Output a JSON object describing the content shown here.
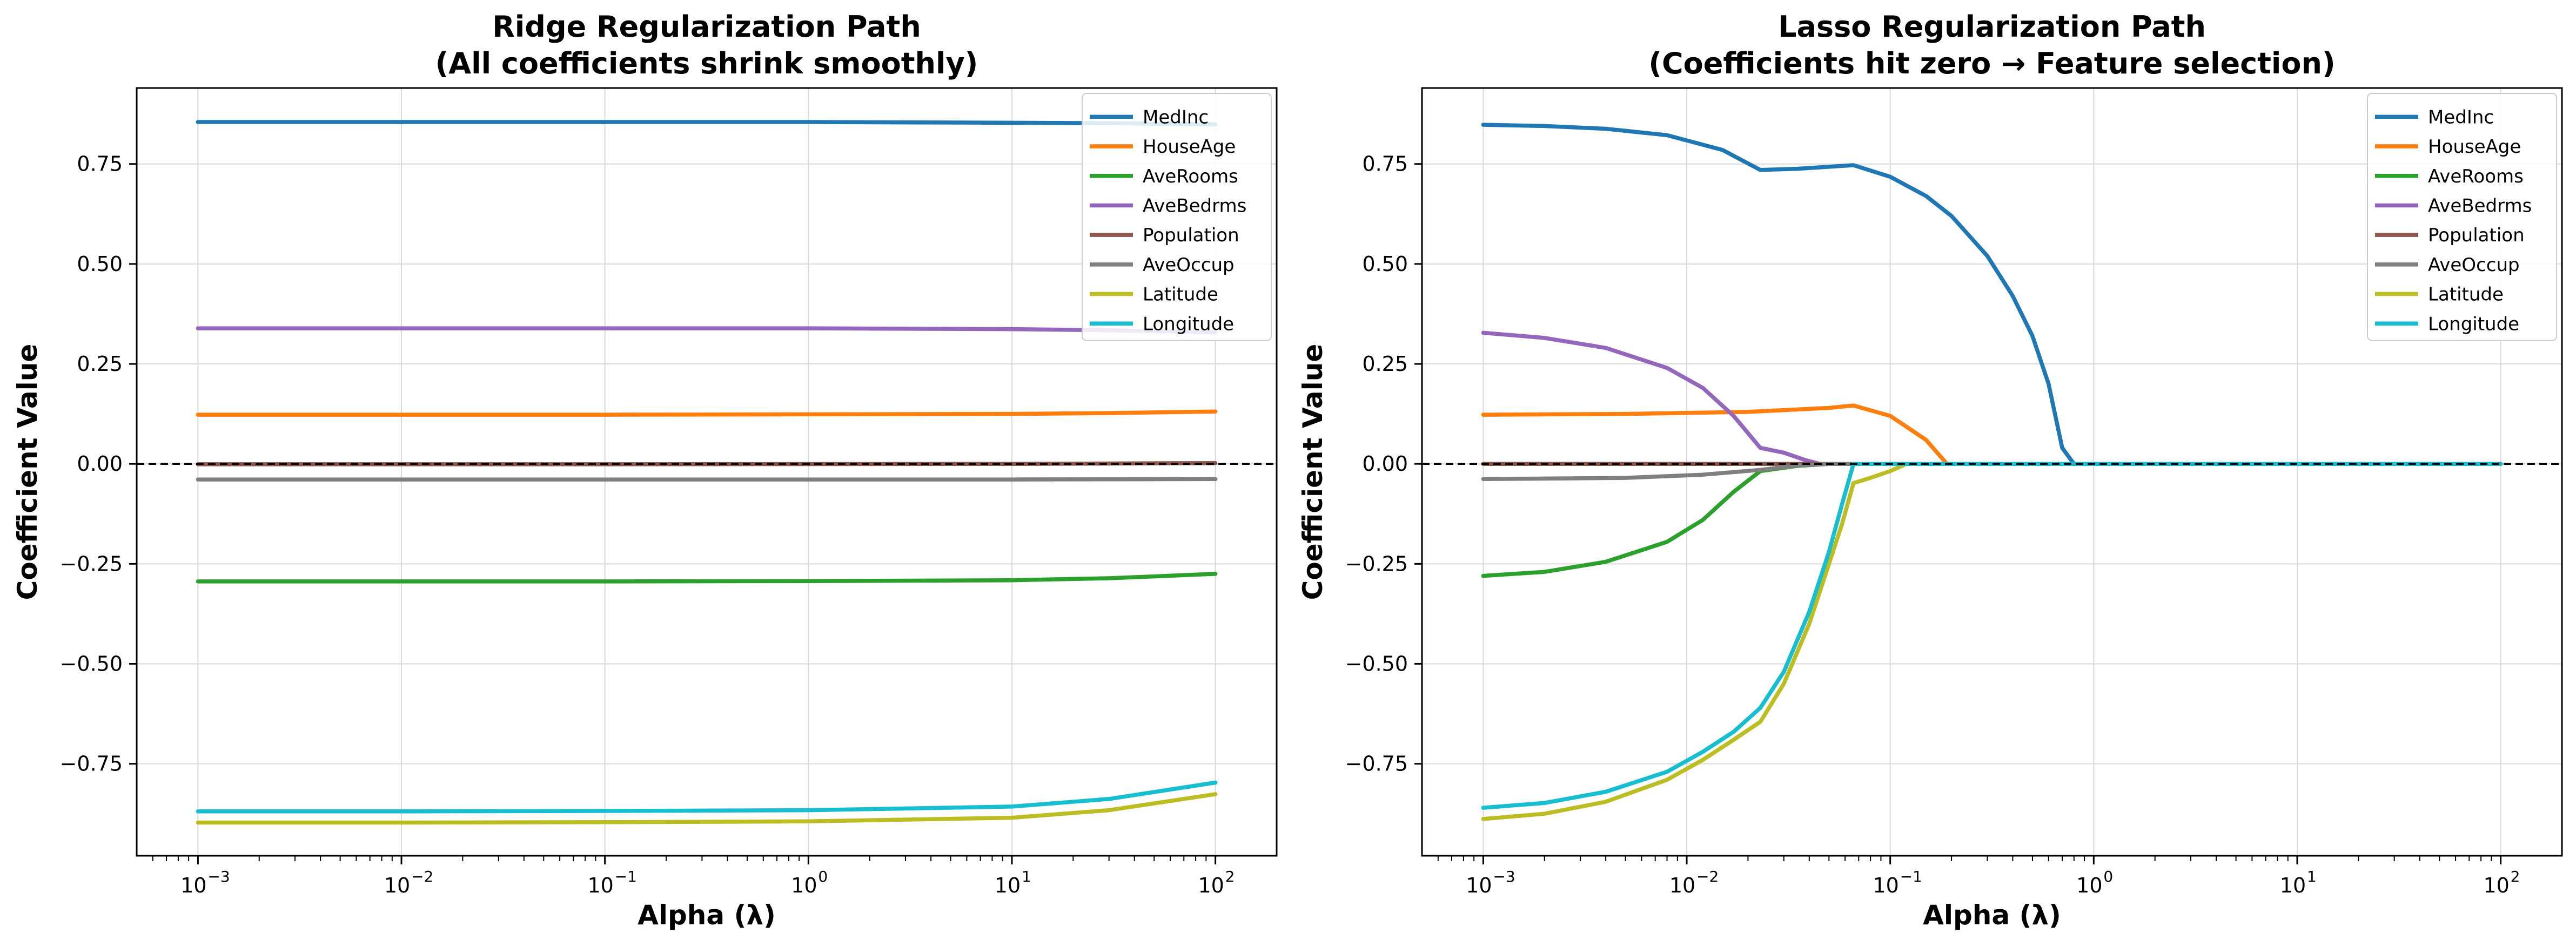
{
  "chart_data": [
    {
      "type": "line",
      "title_line1": "Ridge Regularization Path",
      "title_line2": "(All coefficients shrink smoothly)",
      "xlabel": "Alpha (λ)",
      "ylabel": "Coefficient Value",
      "xscale": "log",
      "xlim": [
        0.0005,
        200
      ],
      "ylim": [
        -0.98,
        0.94
      ],
      "yticks": [
        -0.75,
        -0.5,
        -0.25,
        0.0,
        0.25,
        0.5,
        0.75
      ],
      "ytick_labels": [
        "−0.75",
        "−0.50",
        "−0.25",
        "0.00",
        "0.25",
        "0.50",
        "0.75"
      ],
      "xticks": [
        0.001,
        0.01,
        0.1,
        1,
        10,
        100
      ],
      "xtick_labels": [
        {
          "base": "10",
          "exp": "−3"
        },
        {
          "base": "10",
          "exp": "−2"
        },
        {
          "base": "10",
          "exp": "−1"
        },
        {
          "base": "10",
          "exp": "0"
        },
        {
          "base": "10",
          "exp": "1"
        },
        {
          "base": "10",
          "exp": "2"
        }
      ],
      "grid": true,
      "zero_line": true,
      "legend_position": "top-right",
      "series": [
        {
          "name": "MedInc",
          "color": "#1f77b4",
          "x": [
            0.001,
            0.01,
            0.1,
            1,
            10,
            30,
            100
          ],
          "values": [
            0.855,
            0.855,
            0.855,
            0.855,
            0.853,
            0.852,
            0.849
          ]
        },
        {
          "name": "HouseAge",
          "color": "#ff7f0e",
          "x": [
            0.001,
            0.01,
            0.1,
            1,
            10,
            30,
            100
          ],
          "values": [
            0.123,
            0.123,
            0.123,
            0.124,
            0.125,
            0.127,
            0.131
          ]
        },
        {
          "name": "AveRooms",
          "color": "#2ca02c",
          "x": [
            0.001,
            0.01,
            0.1,
            1,
            10,
            30,
            100
          ],
          "values": [
            -0.294,
            -0.294,
            -0.294,
            -0.293,
            -0.291,
            -0.286,
            -0.275
          ]
        },
        {
          "name": "AveBedrms",
          "color": "#9467bd",
          "x": [
            0.001,
            0.01,
            0.1,
            1,
            10,
            30,
            100
          ],
          "values": [
            0.339,
            0.339,
            0.339,
            0.339,
            0.337,
            0.334,
            0.329
          ]
        },
        {
          "name": "Population",
          "color": "#8c564b",
          "x": [
            0.001,
            0.1,
            10,
            100
          ],
          "values": [
            -0.001,
            -0.001,
            0.0,
            0.002
          ]
        },
        {
          "name": "AveOccup",
          "color": "#7f7f7f",
          "x": [
            0.001,
            0.1,
            10,
            100
          ],
          "values": [
            -0.039,
            -0.039,
            -0.039,
            -0.038
          ]
        },
        {
          "name": "Latitude",
          "color": "#bcbd22",
          "x": [
            0.001,
            0.01,
            0.1,
            1,
            10,
            30,
            100
          ],
          "values": [
            -0.897,
            -0.897,
            -0.896,
            -0.894,
            -0.885,
            -0.866,
            -0.826
          ]
        },
        {
          "name": "Longitude",
          "color": "#17becf",
          "x": [
            0.001,
            0.01,
            0.1,
            1,
            10,
            30,
            100
          ],
          "values": [
            -0.869,
            -0.869,
            -0.868,
            -0.866,
            -0.857,
            -0.838,
            -0.797
          ]
        }
      ]
    },
    {
      "type": "line",
      "title_line1": "Lasso Regularization Path",
      "title_line2": "(Coefficients hit zero → Feature selection)",
      "xlabel": "Alpha (λ)",
      "ylabel": "Coefficient Value",
      "xscale": "log",
      "xlim": [
        0.0005,
        200
      ],
      "ylim": [
        -0.98,
        0.94
      ],
      "yticks": [
        -0.75,
        -0.5,
        -0.25,
        0.0,
        0.25,
        0.5,
        0.75
      ],
      "ytick_labels": [
        "−0.75",
        "−0.50",
        "−0.25",
        "0.00",
        "0.25",
        "0.50",
        "0.75"
      ],
      "xticks": [
        0.001,
        0.01,
        0.1,
        1,
        10,
        100
      ],
      "xtick_labels": [
        {
          "base": "10",
          "exp": "−3"
        },
        {
          "base": "10",
          "exp": "−2"
        },
        {
          "base": "10",
          "exp": "−1"
        },
        {
          "base": "10",
          "exp": "0"
        },
        {
          "base": "10",
          "exp": "1"
        },
        {
          "base": "10",
          "exp": "2"
        }
      ],
      "grid": true,
      "zero_line": true,
      "legend_position": "top-right",
      "series": [
        {
          "name": "MedInc",
          "color": "#1f77b4",
          "x": [
            0.001,
            0.002,
            0.004,
            0.008,
            0.015,
            0.023,
            0.035,
            0.05,
            0.066,
            0.1,
            0.15,
            0.2,
            0.3,
            0.4,
            0.5,
            0.6,
            0.7,
            0.8,
            1,
            3,
            10,
            100
          ],
          "values": [
            0.848,
            0.845,
            0.838,
            0.822,
            0.785,
            0.735,
            0.738,
            0.743,
            0.747,
            0.718,
            0.67,
            0.62,
            0.52,
            0.42,
            0.32,
            0.2,
            0.04,
            0.0,
            0.0,
            0.0,
            0.0,
            0.0
          ]
        },
        {
          "name": "HouseAge",
          "color": "#ff7f0e",
          "x": [
            0.001,
            0.005,
            0.02,
            0.05,
            0.066,
            0.1,
            0.15,
            0.19,
            0.3,
            1,
            10,
            100
          ],
          "values": [
            0.123,
            0.125,
            0.13,
            0.14,
            0.146,
            0.12,
            0.06,
            0.0,
            0.0,
            0.0,
            0.0,
            0.0
          ]
        },
        {
          "name": "AveRooms",
          "color": "#2ca02c",
          "x": [
            0.001,
            0.002,
            0.004,
            0.008,
            0.012,
            0.017,
            0.023,
            0.035,
            0.05,
            0.1,
            1,
            100
          ],
          "values": [
            -0.28,
            -0.27,
            -0.245,
            -0.195,
            -0.14,
            -0.07,
            -0.018,
            -0.005,
            0.0,
            0.0,
            0.0,
            0.0
          ]
        },
        {
          "name": "AveBedrms",
          "color": "#9467bd",
          "x": [
            0.001,
            0.002,
            0.004,
            0.008,
            0.012,
            0.017,
            0.023,
            0.03,
            0.038,
            0.045,
            0.1,
            1,
            100
          ],
          "values": [
            0.328,
            0.315,
            0.29,
            0.24,
            0.19,
            0.12,
            0.04,
            0.028,
            0.01,
            0.0,
            0.0,
            0.0,
            0.0
          ]
        },
        {
          "name": "Population",
          "color": "#8c564b",
          "x": [
            0.001,
            0.01,
            0.05,
            1,
            100
          ],
          "values": [
            0.0,
            0.0,
            0.0,
            0.0,
            0.0
          ]
        },
        {
          "name": "AveOccup",
          "color": "#7f7f7f",
          "x": [
            0.001,
            0.005,
            0.012,
            0.023,
            0.035,
            0.05,
            0.1,
            1,
            100
          ],
          "values": [
            -0.038,
            -0.035,
            -0.027,
            -0.015,
            -0.004,
            0.0,
            0.0,
            0.0,
            0.0
          ]
        },
        {
          "name": "Latitude",
          "color": "#bcbd22",
          "x": [
            0.001,
            0.002,
            0.004,
            0.008,
            0.012,
            0.017,
            0.023,
            0.03,
            0.04,
            0.05,
            0.058,
            0.066,
            0.08,
            0.1,
            0.12,
            0.2,
            1,
            100
          ],
          "values": [
            -0.888,
            -0.875,
            -0.845,
            -0.79,
            -0.74,
            -0.69,
            -0.645,
            -0.55,
            -0.4,
            -0.25,
            -0.15,
            -0.048,
            -0.035,
            -0.018,
            0.0,
            0.0,
            0.0,
            0.0
          ]
        },
        {
          "name": "Longitude",
          "color": "#17becf",
          "x": [
            0.001,
            0.002,
            0.004,
            0.008,
            0.012,
            0.017,
            0.023,
            0.03,
            0.04,
            0.05,
            0.058,
            0.066,
            0.1,
            1,
            100
          ],
          "values": [
            -0.86,
            -0.848,
            -0.82,
            -0.77,
            -0.72,
            -0.67,
            -0.61,
            -0.52,
            -0.37,
            -0.22,
            -0.1,
            0.0,
            0.0,
            0.0,
            0.0
          ]
        }
      ]
    }
  ]
}
